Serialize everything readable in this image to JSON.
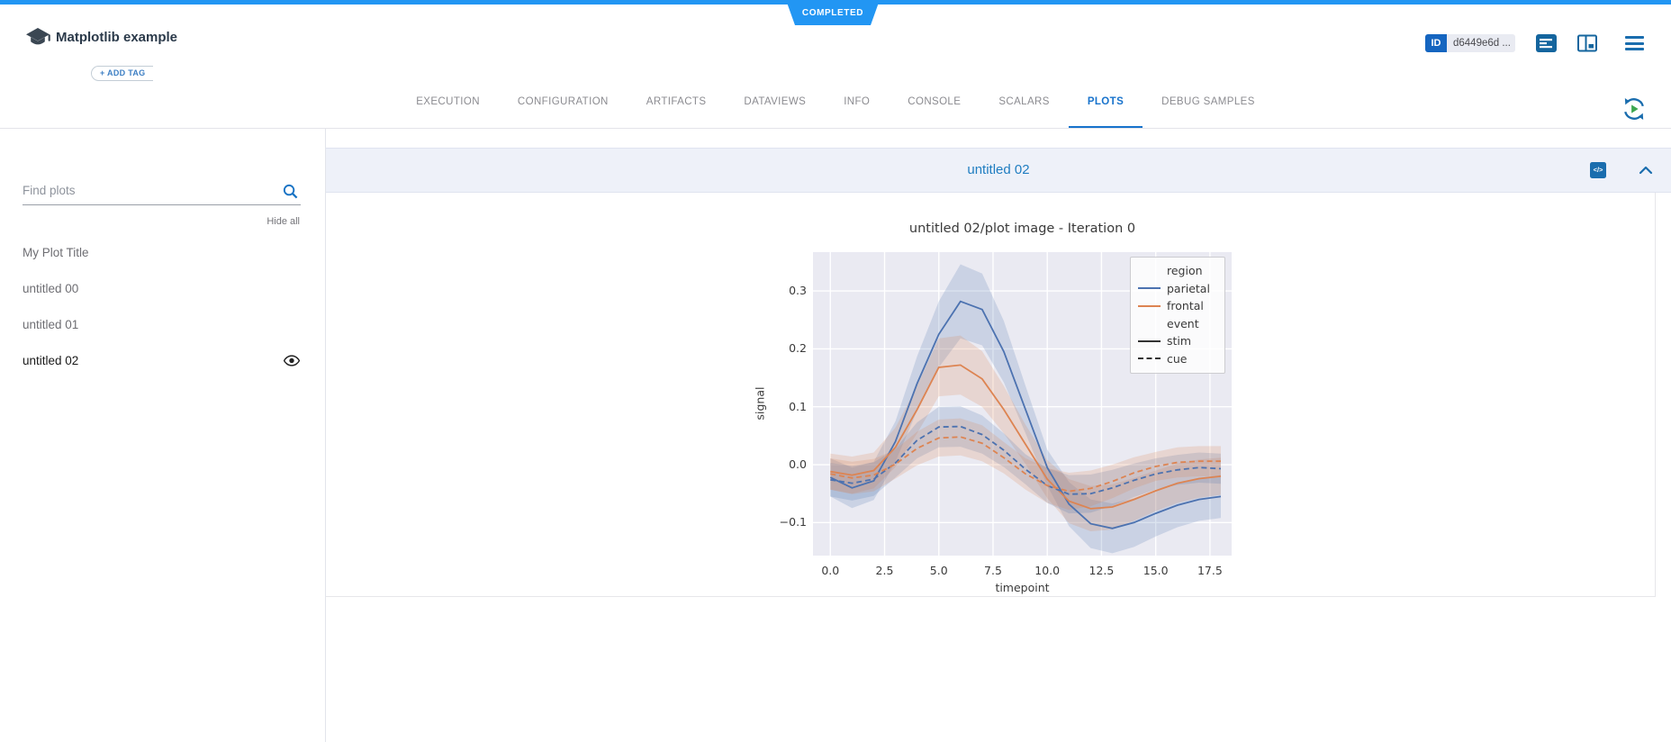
{
  "status_ribbon": {
    "label": "COMPLETED",
    "color": "#2296f3"
  },
  "header": {
    "experiment_title": "Matplotlib example",
    "add_tag_label": "+ ADD TAG",
    "id_badge_label": "ID",
    "id_value": "d6449e6d ...",
    "icons": [
      "console-icon",
      "columns-icon",
      "hamburger-menu-icon"
    ]
  },
  "tabs": [
    {
      "label": "EXECUTION",
      "active": false
    },
    {
      "label": "CONFIGURATION",
      "active": false
    },
    {
      "label": "ARTIFACTS",
      "active": false
    },
    {
      "label": "DATAVIEWS",
      "active": false
    },
    {
      "label": "INFO",
      "active": false
    },
    {
      "label": "CONSOLE",
      "active": false
    },
    {
      "label": "SCALARS",
      "active": false
    },
    {
      "label": "PLOTS",
      "active": true
    },
    {
      "label": "DEBUG SAMPLES",
      "active": false
    }
  ],
  "sidebar": {
    "search_placeholder": "Find plots",
    "hide_all_label": "Hide all",
    "items": [
      {
        "label": "My Plot Title",
        "selected": false,
        "visible_eye": false
      },
      {
        "label": "untitled 00",
        "selected": false,
        "visible_eye": false
      },
      {
        "label": "untitled 01",
        "selected": false,
        "visible_eye": false
      },
      {
        "label": "untitled 02",
        "selected": true,
        "visible_eye": true
      }
    ]
  },
  "plot_panel": {
    "title": "untitled 02",
    "embed_icon_label": "</>"
  },
  "chart_data": {
    "type": "line",
    "title": "untitled 02/plot image - Iteration 0",
    "xlabel": "timepoint",
    "ylabel": "signal",
    "xlim": [
      -0.8,
      18.5
    ],
    "ylim": [
      -0.157,
      0.367
    ],
    "xticks": [
      0,
      2.5,
      5,
      7.5,
      10,
      12.5,
      15,
      17.5
    ],
    "xtick_labels": [
      "0.0",
      "2.5",
      "5.0",
      "7.5",
      "10.0",
      "12.5",
      "15.0",
      "17.5"
    ],
    "yticks": [
      0.3,
      0.2,
      0.1,
      0.0,
      -0.1
    ],
    "ytick_labels": [
      "0.3",
      "0.2",
      "0.1",
      "0.0",
      "−0.1"
    ],
    "grid": true,
    "plot_background": "#eaeaf2",
    "grid_color": "#ffffff",
    "x": [
      0,
      1,
      2,
      3,
      4,
      5,
      6,
      7,
      8,
      9,
      10,
      11,
      12,
      13,
      14,
      15,
      16,
      17,
      18
    ],
    "series": [
      {
        "name": "parietal-stim",
        "color": "#4c72b0",
        "style": "solid",
        "values": [
          -0.022,
          -0.04,
          -0.028,
          0.04,
          0.14,
          0.225,
          0.282,
          0.268,
          0.195,
          0.095,
          -0.005,
          -0.068,
          -0.102,
          -0.11,
          -0.1,
          -0.084,
          -0.07,
          -0.06,
          -0.055
        ],
        "band_low": [
          -0.055,
          -0.075,
          -0.061,
          0.005,
          0.093,
          0.168,
          0.218,
          0.206,
          0.142,
          0.054,
          -0.036,
          -0.106,
          -0.144,
          -0.153,
          -0.142,
          -0.124,
          -0.108,
          -0.097,
          -0.092
        ],
        "band_high": [
          0.011,
          -0.005,
          0.005,
          0.075,
          0.187,
          0.282,
          0.346,
          0.33,
          0.248,
          0.136,
          0.026,
          -0.03,
          -0.06,
          -0.067,
          -0.058,
          -0.044,
          -0.032,
          -0.023,
          -0.018
        ]
      },
      {
        "name": "frontal-stim",
        "color": "#dd8452",
        "style": "solid",
        "values": [
          -0.012,
          -0.018,
          -0.01,
          0.03,
          0.095,
          0.168,
          0.172,
          0.148,
          0.095,
          0.035,
          -0.025,
          -0.063,
          -0.076,
          -0.073,
          -0.06,
          -0.045,
          -0.032,
          -0.024,
          -0.02
        ],
        "band_low": [
          -0.043,
          -0.05,
          -0.041,
          -0.004,
          0.054,
          0.118,
          0.121,
          0.1,
          0.054,
          0.001,
          -0.058,
          -0.101,
          -0.115,
          -0.112,
          -0.097,
          -0.08,
          -0.066,
          -0.057,
          -0.052
        ],
        "band_high": [
          0.019,
          0.014,
          0.021,
          0.064,
          0.136,
          0.218,
          0.223,
          0.196,
          0.136,
          0.069,
          0.008,
          -0.025,
          -0.037,
          -0.034,
          -0.023,
          -0.01,
          0.002,
          0.009,
          0.012
        ]
      },
      {
        "name": "parietal-cue",
        "color": "#4c72b0",
        "style": "dashed",
        "values": [
          -0.026,
          -0.032,
          -0.025,
          0.003,
          0.042,
          0.065,
          0.066,
          0.052,
          0.025,
          -0.008,
          -0.036,
          -0.051,
          -0.05,
          -0.04,
          -0.027,
          -0.016,
          -0.009,
          -0.005,
          -0.007
        ],
        "band_low": [
          -0.055,
          -0.062,
          -0.054,
          -0.022,
          0.011,
          0.03,
          0.031,
          0.019,
          -0.004,
          -0.034,
          -0.066,
          -0.084,
          -0.083,
          -0.071,
          -0.056,
          -0.043,
          -0.035,
          -0.031,
          -0.033
        ],
        "band_high": [
          0.003,
          -0.002,
          0.004,
          0.028,
          0.073,
          0.1,
          0.101,
          0.085,
          0.054,
          0.018,
          -0.006,
          -0.018,
          -0.017,
          -0.009,
          0.002,
          0.011,
          0.017,
          0.021,
          0.019
        ]
      },
      {
        "name": "frontal-cue",
        "color": "#dd8452",
        "style": "dashed",
        "values": [
          -0.016,
          -0.023,
          -0.018,
          0.001,
          0.028,
          0.046,
          0.048,
          0.037,
          0.012,
          -0.016,
          -0.036,
          -0.046,
          -0.041,
          -0.029,
          -0.014,
          -0.003,
          0.004,
          0.006,
          0.006
        ],
        "band_low": [
          -0.043,
          -0.051,
          -0.046,
          -0.024,
          -0.001,
          0.014,
          0.016,
          0.006,
          -0.015,
          -0.043,
          -0.066,
          -0.078,
          -0.072,
          -0.058,
          -0.041,
          -0.028,
          -0.022,
          -0.02,
          -0.02
        ],
        "band_high": [
          0.011,
          0.005,
          0.01,
          0.026,
          0.057,
          0.078,
          0.08,
          0.068,
          0.039,
          0.011,
          -0.006,
          -0.014,
          -0.01,
          0.0,
          0.013,
          0.022,
          0.03,
          0.032,
          0.032
        ]
      }
    ],
    "legend": {
      "position": "upper right",
      "entries": [
        {
          "label": "region",
          "handle": "none",
          "color": ""
        },
        {
          "label": "parietal",
          "handle": "solid",
          "color": "#4c72b0"
        },
        {
          "label": "frontal",
          "handle": "solid",
          "color": "#dd8452"
        },
        {
          "label": "event",
          "handle": "none",
          "color": ""
        },
        {
          "label": "stim",
          "handle": "solid",
          "color": "#333333"
        },
        {
          "label": "cue",
          "handle": "dashed",
          "color": "#333333"
        }
      ]
    }
  }
}
